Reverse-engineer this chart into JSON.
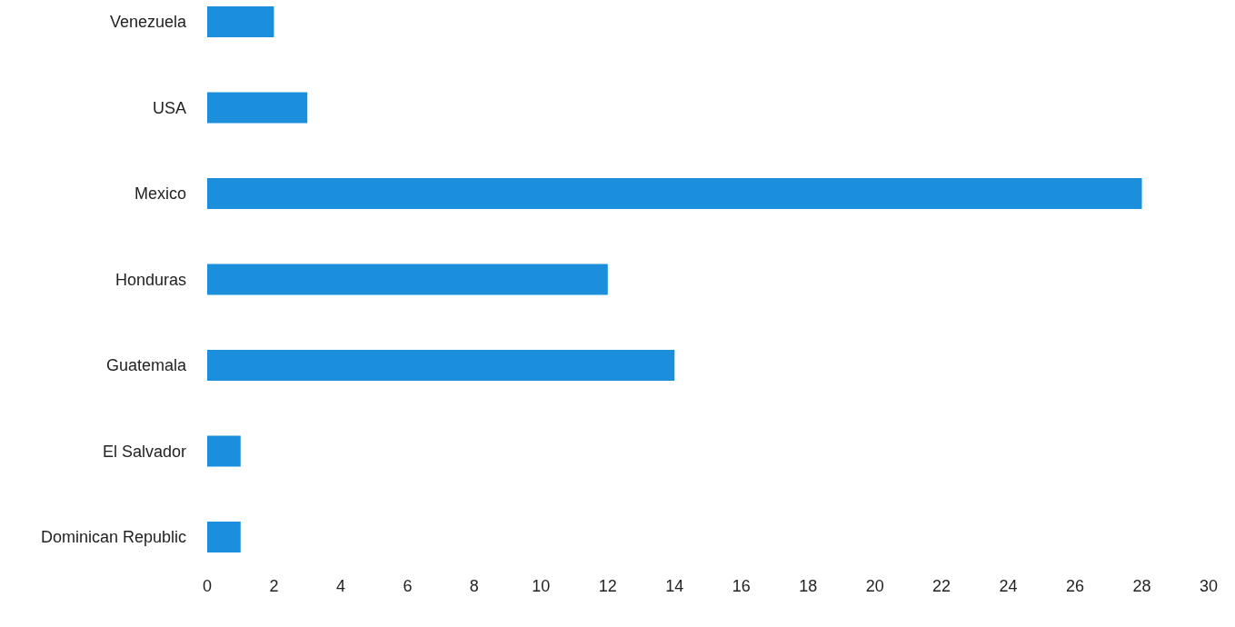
{
  "chart_data": {
    "type": "bar",
    "orientation": "horizontal",
    "categories": [
      "Venezuela",
      "USA",
      "Mexico",
      "Honduras",
      "Guatemala",
      "El Salvador",
      "Dominican Republic"
    ],
    "values": [
      2,
      3,
      28,
      12,
      14,
      1,
      1
    ],
    "color": "#1b8fdb",
    "xlim": [
      0,
      30
    ],
    "xticks": [
      0,
      2,
      4,
      6,
      8,
      10,
      12,
      14,
      16,
      18,
      20,
      22,
      24,
      26,
      28,
      30
    ],
    "grid": false
  }
}
